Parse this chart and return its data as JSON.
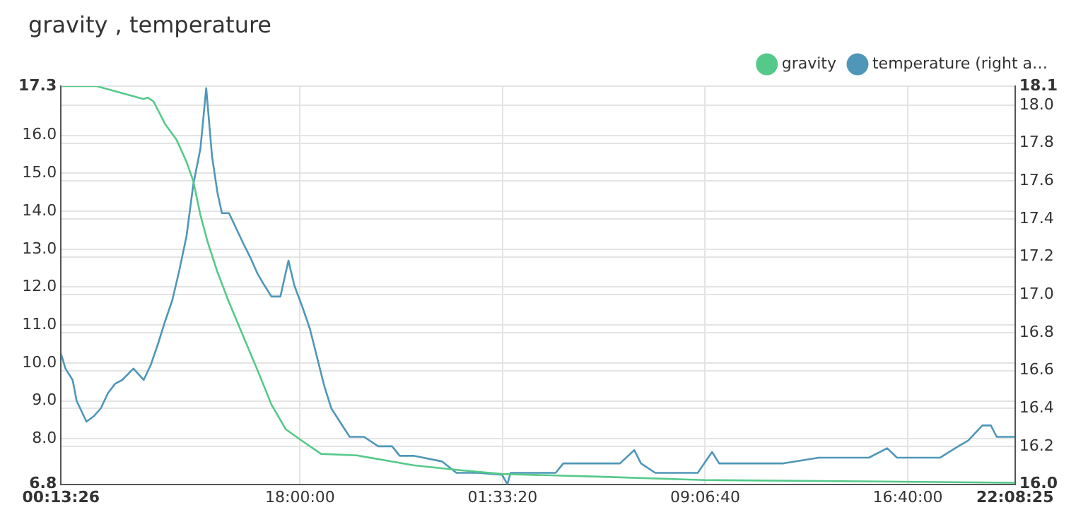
{
  "chart_data": {
    "type": "line",
    "title": "gravity , temperature",
    "xlim": [
      "--01-01T09:05",
      "--01-02T20:40"
    ],
    "xticks": [
      {
        "value": "--01-01T09:05",
        "label": "00:13:26"
      },
      {
        "value": "--01-01T18:00:00",
        "label": "18:00:00"
      },
      {
        "value": "--01-02T01:33:20",
        "label": "01:33:20"
      },
      {
        "value": "--01-02T09:06:40",
        "label": "09:06:40"
      },
      {
        "value": "--01-02T16:40:00",
        "label": "16:40:00"
      },
      {
        "value": "--01-02T20:40",
        "label": "22:08:25"
      }
    ],
    "ylim": [
      6.8,
      17.3
    ],
    "yticks": [
      6.8,
      {
        "value": 8,
        "label": "8.0"
      },
      {
        "value": 9,
        "label": "9.0"
      },
      {
        "value": 10,
        "label": "10.0"
      },
      {
        "value": 11,
        "label": "11.0"
      },
      {
        "value": 12,
        "label": "12.0"
      },
      {
        "value": 13,
        "label": "13.0"
      },
      {
        "value": 14,
        "label": "14.0"
      },
      {
        "value": 15,
        "label": "15.0"
      },
      {
        "value": 16,
        "label": "16.0"
      },
      17.3
    ],
    "y2lim": [
      16.0,
      18.1
    ],
    "y2ticks": [
      {
        "value": 16,
        "label": "16.0"
      },
      16.2,
      16.4,
      16.6,
      16.8,
      {
        "value": 17,
        "label": "17.0"
      },
      17.2,
      17.4,
      17.6,
      17.8,
      {
        "value": 18,
        "label": "18.0"
      },
      18.1
    ],
    "grid": true,
    "legend": "top right",
    "marker": "none",
    "line_style": "solid",
    "series": [
      {
        "name": "gravity",
        "color": "#55c98a",
        "x": [
          "--01-01T09:05",
          "--01-01T10:25",
          "--01-01T12:10",
          "--01-01T12:19",
          "--01-01T12:32",
          "--01-01T12:58",
          "--01-01T13:23",
          "--01-01T13:46",
          "--01-01T14:01",
          "--01-01T14:17",
          "--01-01T14:33",
          "--01-01T14:55",
          "--01-01T15:21",
          "--01-01T15:53",
          "--01-01T16:25",
          "--01-01T16:56",
          "--01-01T17:28",
          "--01-01T18:00",
          "--01-01T18:47",
          "--01-01T20:07",
          "--01-01T22:14",
          "--01-01T23:50",
          "--01-02T01:32",
          "--01-02T05:08",
          "--01-02T09:07",
          "--01-02T14:09",
          "--01-02T20:40"
        ],
        "values": [
          17.3,
          17.3,
          16.96,
          17.0,
          16.9,
          16.3,
          15.9,
          15.3,
          14.8,
          13.9,
          13.2,
          12.4,
          11.6,
          10.7,
          9.8,
          8.9,
          8.25,
          7.98,
          7.6,
          7.56,
          7.3,
          7.18,
          7.07,
          7.0,
          6.91,
          6.88,
          6.84
        ]
      },
      {
        "name": "temperature (right a…",
        "color": "#4f97b9",
        "axis": "y2",
        "x": [
          "--01-01T09:05",
          "--01-01T09:15",
          "--01-01T09:31",
          "--01-01T09:40",
          "--01-01T10:02",
          "--01-01T10:19",
          "--01-01T10:34",
          "--01-01T10:50",
          "--01-01T11:06",
          "--01-01T11:22",
          "--01-01T11:47",
          "--01-01T12:10",
          "--01-01T12:26",
          "--01-01T12:42",
          "--01-01T12:58",
          "--01-01T13:14",
          "--01-01T13:29",
          "--01-01T13:46",
          "--01-01T14:01",
          "--01-01T14:17",
          "--01-01T14:30",
          "--01-01T14:43",
          "--01-01T14:55",
          "--01-01T15:05",
          "--01-01T15:21",
          "--01-01T15:37",
          "--01-01T15:53",
          "--01-01T16:08",
          "--01-01T16:25",
          "--01-01T16:40",
          "--01-01T16:56",
          "--01-01T17:16",
          "--01-01T17:34",
          "--01-01T17:47",
          "--01-01T18:06",
          "--01-01T18:22",
          "--01-01T18:38",
          "--01-01T18:54",
          "--01-01T19:10",
          "--01-01T19:29",
          "--01-01T19:51",
          "--01-01T20:23",
          "--01-01T20:55",
          "--01-01T21:26",
          "--01-01T21:43",
          "--01-01T22:14",
          "--01-01T23:18",
          "--01-01T23:50",
          "--01-02T00:38",
          "--01-02T01:32",
          "--01-02T01:44",
          "--01-02T01:51",
          "--01-02T03:32",
          "--01-02T03:49",
          "--01-02T05:08",
          "--01-02T05:56",
          "--01-02T06:28",
          "--01-02T06:43",
          "--01-02T07:15",
          "--01-02T08:50",
          "--01-02T09:22",
          "--01-02T09:38",
          "--01-02T12:02",
          "--01-02T13:21",
          "--01-02T15:13",
          "--01-02T15:54",
          "--01-02T16:16",
          "--01-02T17:52",
          "--01-02T18:33",
          "--01-02T18:55",
          "--01-02T19:27",
          "--01-02T19:46",
          "--01-02T19:59",
          "--01-02T20:40"
        ],
        "values": [
          16.69,
          16.61,
          16.55,
          16.44,
          16.33,
          16.36,
          16.4,
          16.48,
          16.53,
          16.55,
          16.61,
          16.55,
          16.63,
          16.74,
          16.86,
          16.97,
          17.12,
          17.31,
          17.58,
          17.77,
          18.09,
          17.73,
          17.54,
          17.43,
          17.43,
          17.35,
          17.27,
          17.2,
          17.11,
          17.05,
          16.99,
          16.99,
          17.18,
          17.05,
          16.93,
          16.82,
          16.67,
          16.52,
          16.4,
          16.33,
          16.25,
          16.25,
          16.2,
          16.2,
          16.15,
          16.15,
          16.12,
          16.06,
          16.06,
          16.05,
          16.0,
          16.06,
          16.06,
          16.11,
          16.11,
          16.11,
          16.18,
          16.11,
          16.06,
          16.06,
          16.17,
          16.11,
          16.11,
          16.14,
          16.14,
          16.19,
          16.14,
          16.14,
          16.2,
          16.23,
          16.31,
          16.31,
          16.25,
          16.25
        ]
      }
    ]
  }
}
